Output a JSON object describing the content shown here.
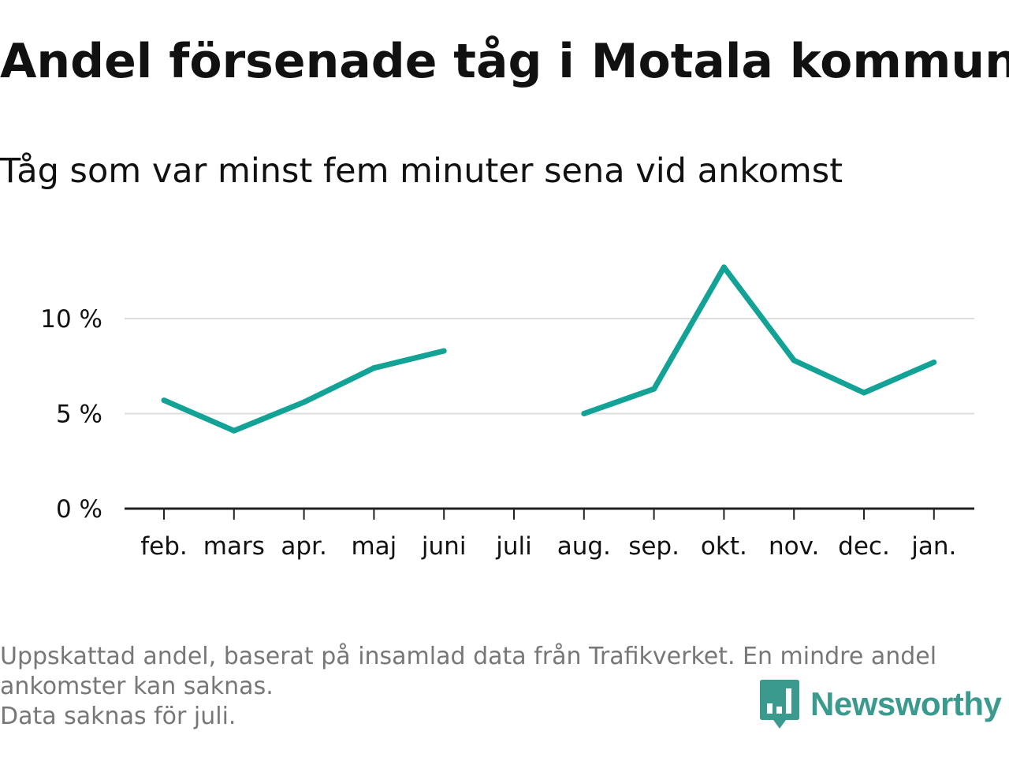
{
  "title": "Andel försenade tåg i Motala kommun",
  "subtitle": "Tåg som var minst fem minuter sena vid ankomst",
  "footnote": {
    "line1": "Uppskattad andel, baserat på insamlad data från Trafikverket. En mindre andel",
    "line2": "ankomster kan saknas.",
    "line3": "Data saknas för juli."
  },
  "logo": {
    "text": "Newsworthy",
    "icon": "newsworthy-bar-chart-icon"
  },
  "colors": {
    "line": "#12a296",
    "grid": "#dddddd",
    "axis": "#222222",
    "text": "#111111",
    "muted": "#777777",
    "brand": "#3a9a8e"
  },
  "chart_data": {
    "type": "line",
    "categories": [
      "feb.",
      "mars",
      "apr.",
      "maj",
      "juni",
      "juli",
      "aug.",
      "sep.",
      "okt.",
      "nov.",
      "dec.",
      "jan."
    ],
    "series": [
      {
        "values": [
          5.7,
          4.1,
          5.6,
          7.4,
          8.3,
          null,
          5.0,
          6.3,
          12.7,
          7.8,
          6.1,
          7.7
        ]
      }
    ],
    "y_ticks": [
      {
        "value": 0,
        "label": "0 %"
      },
      {
        "value": 5,
        "label": "5 %"
      },
      {
        "value": 10,
        "label": "10 %"
      }
    ],
    "ylim": [
      0,
      13
    ],
    "grid": true,
    "legend": "none"
  }
}
